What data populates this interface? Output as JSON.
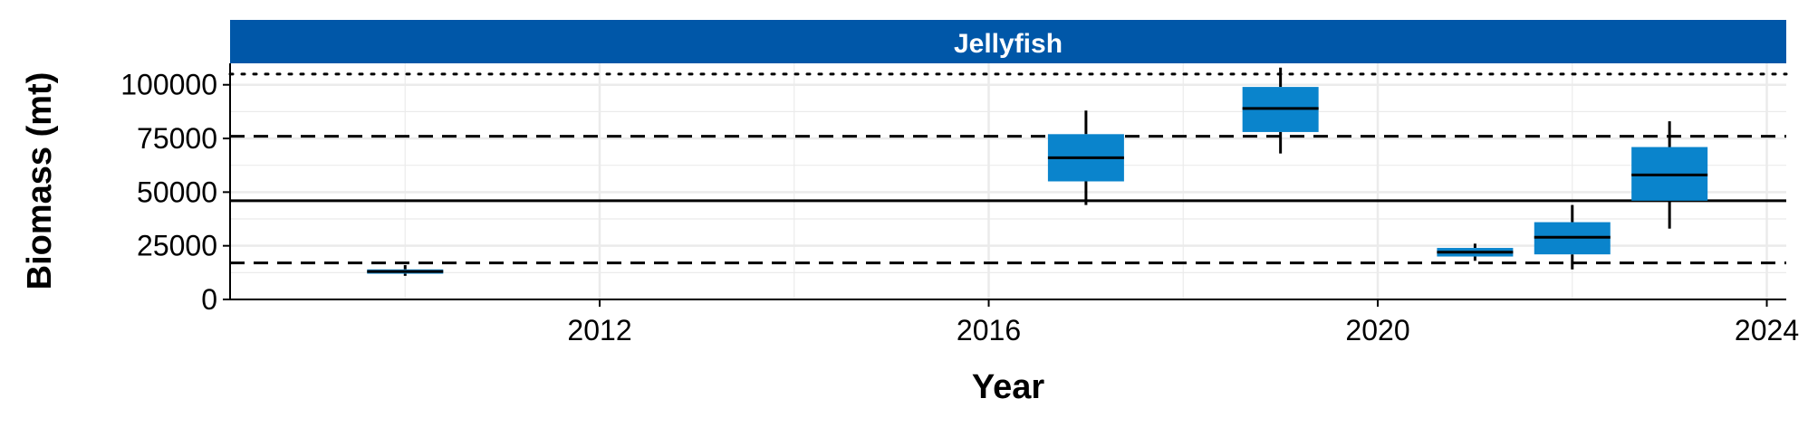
{
  "chart_data": {
    "type": "box",
    "panel_title": "Jellyfish",
    "xlabel": "Year",
    "ylabel": "Biomass (mt)",
    "xlim": [
      2008.2,
      2024.2
    ],
    "ylim": [
      0,
      110000
    ],
    "x_ticks": [
      2012,
      2016,
      2020,
      2024
    ],
    "y_ticks": [
      0,
      25000,
      50000,
      75000,
      100000
    ],
    "grid": true,
    "colors": {
      "box_fill": "#0a84cc",
      "strip_fill": "#0057a8",
      "reference_line": "#000000",
      "grid": "#ebebeb"
    },
    "reference_lines": [
      {
        "style": "dotted",
        "y": 105000
      },
      {
        "style": "dashed",
        "y": 76000
      },
      {
        "style": "solid",
        "y": 46000
      },
      {
        "style": "dashed",
        "y": 17000
      }
    ],
    "boxes": [
      {
        "x": 2010,
        "q1": 12000,
        "median": 13000,
        "q3": 14000,
        "whisker_low": 11000,
        "whisker_high": 16000
      },
      {
        "x": 2017,
        "q1": 55000,
        "median": 66000,
        "q3": 77000,
        "whisker_low": 44000,
        "whisker_high": 88000
      },
      {
        "x": 2019,
        "q1": 78000,
        "median": 89000,
        "q3": 99000,
        "whisker_low": 68000,
        "whisker_high": 108000
      },
      {
        "x": 2021,
        "q1": 20000,
        "median": 22000,
        "q3": 24000,
        "whisker_low": 18000,
        "whisker_high": 26000
      },
      {
        "x": 2022,
        "q1": 21000,
        "median": 29000,
        "q3": 36000,
        "whisker_low": 14000,
        "whisker_high": 44000
      },
      {
        "x": 2023,
        "q1": 46000,
        "median": 58000,
        "q3": 71000,
        "whisker_low": 33000,
        "whisker_high": 83000
      }
    ]
  }
}
